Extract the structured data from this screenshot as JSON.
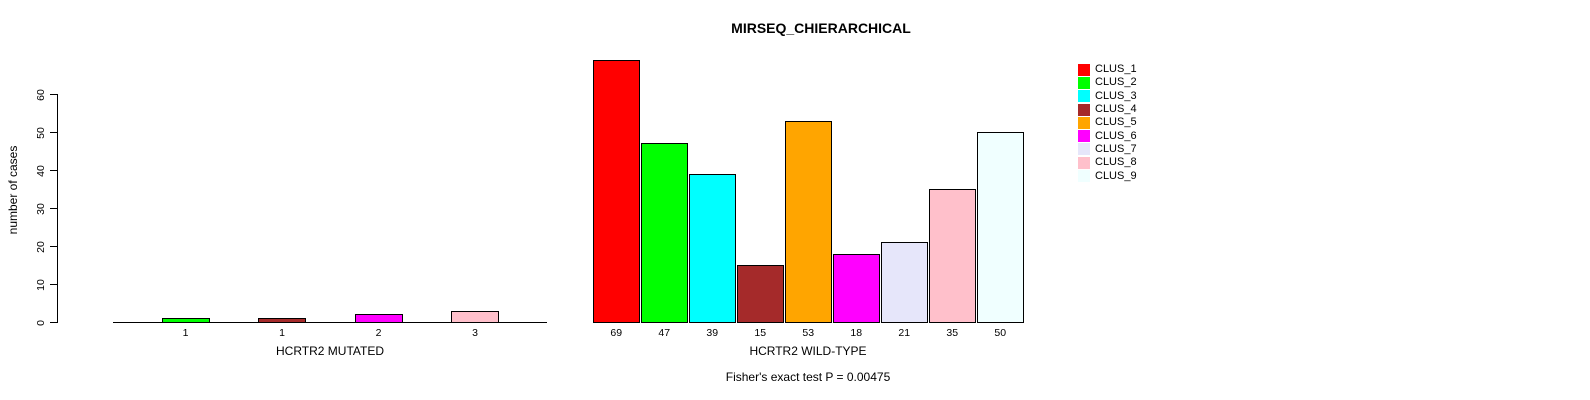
{
  "title": "MIRSEQ_CHIERARCHICAL",
  "subtitle": "Fisher's exact test P = 0.00475",
  "y_axis": {
    "label": "number of cases",
    "ticks": [
      0,
      10,
      20,
      30,
      40,
      50,
      60
    ],
    "range": [
      0,
      60
    ]
  },
  "chart_data": [
    {
      "type": "bar",
      "panel": "HCRTR2 MUTATED",
      "xlabel": "HCRTR2 MUTATED",
      "categories": [
        "1",
        "1",
        "2",
        "3"
      ],
      "values": [
        1,
        1,
        2,
        3
      ],
      "colors": [
        "#00FF00",
        "#A52A2A",
        "#FF00FF",
        "#FFC0CB"
      ],
      "ylim": [
        0,
        60
      ],
      "baseline": true
    },
    {
      "type": "bar",
      "panel": "HCRTR2 WILD-TYPE",
      "xlabel": "HCRTR2 WILD-TYPE",
      "categories": [
        "69",
        "47",
        "39",
        "15",
        "53",
        "18",
        "21",
        "35",
        "50"
      ],
      "values": [
        69,
        47,
        39,
        15,
        53,
        18,
        21,
        35,
        50
      ],
      "colors": [
        "#FF0000",
        "#00FF00",
        "#00FFFF",
        "#A52A2A",
        "#FFA500",
        "#FF00FF",
        "#E6E6FA",
        "#FFC0CB",
        "#F0FFFF"
      ],
      "ylim": [
        0,
        60
      ],
      "baseline": false
    }
  ],
  "legend": {
    "position": "top-right",
    "items": [
      {
        "label": "CLUS_1",
        "color": "#FF0000"
      },
      {
        "label": "CLUS_2",
        "color": "#00FF00"
      },
      {
        "label": "CLUS_3",
        "color": "#00FFFF"
      },
      {
        "label": "CLUS_4",
        "color": "#A52A2A"
      },
      {
        "label": "CLUS_5",
        "color": "#FFA500"
      },
      {
        "label": "CLUS_6",
        "color": "#FF00FF"
      },
      {
        "label": "CLUS_7",
        "color": "#E6E6FA"
      },
      {
        "label": "CLUS_8",
        "color": "#FFC0CB"
      },
      {
        "label": "CLUS_9",
        "color": "#F0FFFF"
      }
    ]
  }
}
